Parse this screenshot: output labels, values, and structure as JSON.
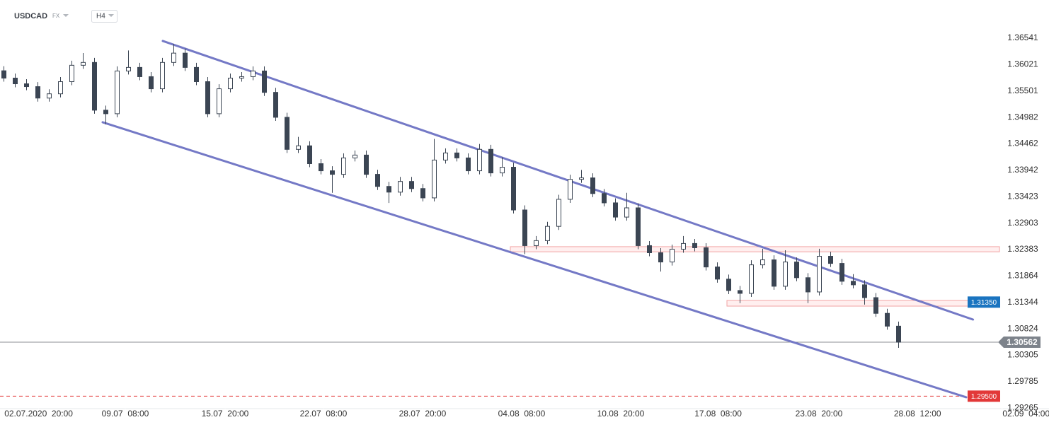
{
  "header": {
    "symbol": "USDCAD",
    "market": "FX",
    "interval": "H4"
  },
  "chart_data": {
    "type": "candlestick",
    "open": [
      1.359,
      1.35756,
      1.35644,
      1.35588,
      1.35363,
      1.35447,
      1.35686,
      1.36008,
      1.36064,
      1.35125,
      1.35055,
      1.35896,
      1.35966,
      1.35784,
      1.35546,
      1.36064,
      1.36247,
      1.35966,
      1.35686,
      1.35055,
      1.35546,
      1.35756,
      1.35784,
      1.35896,
      1.35475,
      1.34985,
      1.34354,
      1.34424,
      1.34073,
      1.33933,
      1.33863,
      1.34186,
      1.34242,
      1.33863,
      1.33625,
      1.33513,
      1.33723,
      1.33583,
      1.334,
      1.34144,
      1.34284,
      1.34186,
      1.33933,
      1.34354,
      1.33891,
      1.34003,
      1.33162,
      1.32461,
      1.32559,
      1.3284,
      1.33372,
      1.33765,
      1.33793,
      1.33485,
      1.33302,
      1.33022,
      1.33204,
      1.32461,
      1.32321,
      1.32139,
      1.32391,
      1.32503,
      1.32419,
      1.32041,
      1.31802,
      1.31578,
      1.31522,
      1.32083,
      1.32181,
      1.31662,
      1.32139,
      1.3183,
      1.3155,
      1.32251,
      1.32111,
      1.3176,
      1.3169,
      1.31438,
      1.31129,
      1.30877
    ],
    "high": [
      1.3599,
      1.35846,
      1.35734,
      1.35678,
      1.35537,
      1.35776,
      1.36098,
      1.3625,
      1.36154,
      1.35215,
      1.35986,
      1.363,
      1.36056,
      1.35874,
      1.36154,
      1.36429,
      1.36337,
      1.36056,
      1.35776,
      1.35636,
      1.35846,
      1.35874,
      1.35986,
      1.35986,
      1.35565,
      1.35075,
      1.346,
      1.34514,
      1.34163,
      1.34023,
      1.34276,
      1.34332,
      1.34332,
      1.33953,
      1.33715,
      1.33813,
      1.33813,
      1.33673,
      1.3456,
      1.34374,
      1.34374,
      1.34276,
      1.3446,
      1.34444,
      1.342,
      1.34093,
      1.33252,
      1.32649,
      1.3293,
      1.33462,
      1.33855,
      1.3395,
      1.33883,
      1.33575,
      1.33392,
      1.335,
      1.33294,
      1.32551,
      1.32411,
      1.32481,
      1.3265,
      1.32593,
      1.32509,
      1.32131,
      1.31892,
      1.31668,
      1.32173,
      1.324,
      1.32271,
      1.3237,
      1.32229,
      1.3192,
      1.324,
      1.32341,
      1.32201,
      1.319,
      1.3178,
      1.31528,
      1.31219,
      1.30967
    ],
    "low": [
      1.35686,
      1.35574,
      1.35518,
      1.35293,
      1.35293,
      1.35377,
      1.35616,
      1.35938,
      1.35055,
      1.34845,
      1.34985,
      1.35826,
      1.35714,
      1.35476,
      1.35476,
      1.35994,
      1.35896,
      1.35616,
      1.34985,
      1.34985,
      1.35476,
      1.35686,
      1.35714,
      1.35405,
      1.34915,
      1.34284,
      1.34284,
      1.34003,
      1.33863,
      1.335,
      1.33793,
      1.34116,
      1.33793,
      1.33555,
      1.333,
      1.33443,
      1.33513,
      1.3333,
      1.3333,
      1.34074,
      1.34116,
      1.33863,
      1.33863,
      1.33821,
      1.33821,
      1.33092,
      1.32293,
      1.32391,
      1.32489,
      1.3277,
      1.33302,
      1.33695,
      1.33415,
      1.33232,
      1.32952,
      1.32952,
      1.32391,
      1.32251,
      1.3195,
      1.32069,
      1.32321,
      1.32349,
      1.31971,
      1.31732,
      1.31508,
      1.3133,
      1.31452,
      1.32013,
      1.31592,
      1.31592,
      1.3176,
      1.3133,
      1.3148,
      1.32041,
      1.3169,
      1.3162,
      1.313,
      1.31059,
      1.30807,
      1.3045
    ],
    "close": [
      1.35756,
      1.35644,
      1.35588,
      1.35363,
      1.35447,
      1.35686,
      1.36008,
      1.36064,
      1.35125,
      1.35055,
      1.35896,
      1.35966,
      1.35784,
      1.35546,
      1.36064,
      1.36247,
      1.35966,
      1.35686,
      1.35055,
      1.35546,
      1.35756,
      1.35784,
      1.35896,
      1.35475,
      1.34985,
      1.34354,
      1.34424,
      1.34073,
      1.33933,
      1.33863,
      1.34186,
      1.34242,
      1.33863,
      1.33625,
      1.33513,
      1.33723,
      1.33583,
      1.334,
      1.34144,
      1.34284,
      1.34186,
      1.33933,
      1.34354,
      1.33891,
      1.34003,
      1.33162,
      1.32461,
      1.32559,
      1.3284,
      1.33372,
      1.33765,
      1.33793,
      1.33485,
      1.33302,
      1.33022,
      1.33204,
      1.32461,
      1.32321,
      1.32139,
      1.32391,
      1.32503,
      1.32419,
      1.32041,
      1.31802,
      1.31578,
      1.31522,
      1.32083,
      1.32181,
      1.31662,
      1.32139,
      1.3183,
      1.3155,
      1.32251,
      1.32111,
      1.3176,
      1.3169,
      1.31438,
      1.31129,
      1.30877,
      1.30562
    ],
    "candle_color": "#3b4553",
    "ylim": [
      1.29255,
      1.37292
    ],
    "yticks": [
      1.36541,
      1.36021,
      1.35501,
      1.34982,
      1.34462,
      1.33942,
      1.33423,
      1.32903,
      1.32383,
      1.31864,
      1.31344,
      1.30824,
      1.30305,
      1.29785,
      1.29265
    ],
    "xlim": [
      -0.3125,
      92.3125
    ],
    "xticks": [
      {
        "value": 3.1,
        "label": "02.07.2020  20:00"
      },
      {
        "value": 10.75,
        "label": "09.07  08:00"
      },
      {
        "value": 19.56,
        "label": "15.07  20:00"
      },
      {
        "value": 28.25,
        "label": "22.07  08:00"
      },
      {
        "value": 37,
        "label": "28.07  20:00"
      },
      {
        "value": 45.75,
        "label": "04.08  08:00"
      },
      {
        "value": 54.5,
        "label": "10.08  20:00"
      },
      {
        "value": 63.1,
        "label": "17.08  08:00"
      },
      {
        "value": 72,
        "label": "23.08  20:00"
      },
      {
        "value": 80.7,
        "label": "28.08  12:00"
      },
      {
        "value": 90.3,
        "label": "02.09  04:00"
      }
    ],
    "channel": [
      {
        "x": [
          14.06,
          85.6
        ],
        "y": [
          1.36486,
          1.31007
        ]
      },
      {
        "x": [
          8.75,
          85
        ],
        "y": [
          1.34887,
          1.29478
        ]
      }
    ],
    "channel_color": "#7479c6",
    "zones": [
      {
        "x": [
          44.75,
          87.94
        ],
        "y": [
          1.3244,
          1.3234
        ]
      },
      {
        "x": [
          63.875,
          87.94
        ],
        "y": [
          1.31383,
          1.31271
        ]
      }
    ],
    "levels": [
      {
        "value": 1.3135,
        "label": "1.31350",
        "color": "#1a74c0",
        "line": "none"
      },
      {
        "value": 1.295,
        "label": "1.29500",
        "color": "#e23838",
        "line": "dashed"
      },
      {
        "value": 1.30562,
        "color": "#7d838b",
        "line": "solid",
        "current": true
      }
    ]
  }
}
